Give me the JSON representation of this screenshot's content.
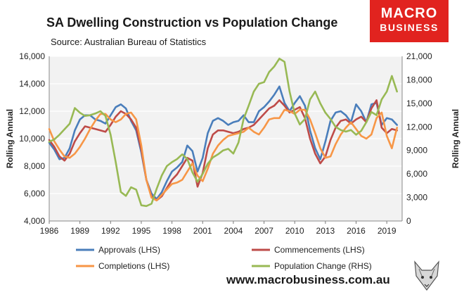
{
  "header": {
    "title": "SA Dwelling Construction vs Population Change",
    "subtitle": "Source: Australian Bureau of Statistics"
  },
  "logo": {
    "line1": "MACRO",
    "line2": "BUSINESS",
    "icon": "fox-head-icon"
  },
  "footer": {
    "url": "www.macrobusiness.com.au"
  },
  "colors": {
    "approvals": "#4a7ebb",
    "commencements": "#be4b48",
    "completions": "#f79646",
    "population": "#98b954",
    "brand": "#e1231f"
  },
  "chart_data": {
    "type": "line",
    "ylabel_left": "Rolling Annual",
    "ylabel_right": "Rolling Annual",
    "x_ticks": [
      "1986",
      "1989",
      "1992",
      "1995",
      "1998",
      "2001",
      "2004",
      "2007",
      "2010",
      "2013",
      "2016",
      "2019"
    ],
    "xlim": [
      1986,
      2020.5
    ],
    "ylim_left": [
      4000,
      16000
    ],
    "ylim_right": [
      0,
      21000
    ],
    "y_ticks_left": [
      "4,000",
      "6,000",
      "8,000",
      "10,000",
      "12,000",
      "14,000",
      "16,000"
    ],
    "y_ticks_right": [
      "0",
      "3,000",
      "6,000",
      "9,000",
      "12,000",
      "15,000",
      "18,000",
      "21,000"
    ],
    "legend": [
      "Approvals (LHS)",
      "Commencements (LHS)",
      "Completions (LHS)",
      "Population Change (RHS)"
    ],
    "series": [
      {
        "name": "Approvals (LHS)",
        "axis": "left",
        "color": "#4a7ebb",
        "points": [
          [
            1986,
            9700
          ],
          [
            1986.5,
            9200
          ],
          [
            1987,
            8500
          ],
          [
            1987.5,
            8600
          ],
          [
            1988,
            9300
          ],
          [
            1988.5,
            10600
          ],
          [
            1989,
            11400
          ],
          [
            1989.5,
            11700
          ],
          [
            1990,
            11700
          ],
          [
            1990.5,
            11400
          ],
          [
            1991,
            11300
          ],
          [
            1991.5,
            11100
          ],
          [
            1992,
            11700
          ],
          [
            1992.5,
            12300
          ],
          [
            1993,
            12500
          ],
          [
            1993.5,
            12200
          ],
          [
            1994,
            11300
          ],
          [
            1994.5,
            10600
          ],
          [
            1995,
            9000
          ],
          [
            1995.5,
            7000
          ],
          [
            1996,
            6000
          ],
          [
            1996.5,
            5600
          ],
          [
            1997,
            6100
          ],
          [
            1997.5,
            6900
          ],
          [
            1998,
            7600
          ],
          [
            1998.5,
            7900
          ],
          [
            1999,
            8300
          ],
          [
            1999.5,
            9500
          ],
          [
            2000,
            9100
          ],
          [
            2000.5,
            7600
          ],
          [
            2001,
            8600
          ],
          [
            2001.5,
            10400
          ],
          [
            2002,
            11300
          ],
          [
            2002.5,
            11500
          ],
          [
            2003,
            11300
          ],
          [
            2003.5,
            11000
          ],
          [
            2004,
            11200
          ],
          [
            2004.5,
            11300
          ],
          [
            2005,
            11700
          ],
          [
            2005.5,
            11200
          ],
          [
            2006,
            11200
          ],
          [
            2006.5,
            12000
          ],
          [
            2007,
            12300
          ],
          [
            2007.5,
            12700
          ],
          [
            2008,
            13200
          ],
          [
            2008.5,
            13800
          ],
          [
            2009,
            12600
          ],
          [
            2009.5,
            12000
          ],
          [
            2010,
            12600
          ],
          [
            2010.5,
            13100
          ],
          [
            2011,
            12400
          ],
          [
            2011.5,
            10600
          ],
          [
            2012,
            9300
          ],
          [
            2012.5,
            8500
          ],
          [
            2013,
            9800
          ],
          [
            2013.5,
            11300
          ],
          [
            2014,
            11900
          ],
          [
            2014.5,
            12000
          ],
          [
            2015,
            11700
          ],
          [
            2015.5,
            11200
          ],
          [
            2016,
            12500
          ],
          [
            2016.5,
            12000
          ],
          [
            2017,
            11200
          ],
          [
            2017.5,
            12500
          ],
          [
            2018,
            12600
          ],
          [
            2018.5,
            11000
          ],
          [
            2019,
            11500
          ],
          [
            2019.5,
            11400
          ],
          [
            2020,
            11000
          ]
        ]
      },
      {
        "name": "Commencements (LHS)",
        "axis": "left",
        "color": "#be4b48",
        "points": [
          [
            1986,
            9900
          ],
          [
            1986.5,
            9400
          ],
          [
            1987,
            8700
          ],
          [
            1987.5,
            8400
          ],
          [
            1988,
            8900
          ],
          [
            1988.5,
            9800
          ],
          [
            1989,
            10400
          ],
          [
            1989.5,
            10900
          ],
          [
            1990,
            10800
          ],
          [
            1990.5,
            10700
          ],
          [
            1991,
            10600
          ],
          [
            1991.5,
            10500
          ],
          [
            1992,
            11000
          ],
          [
            1992.5,
            11600
          ],
          [
            1993,
            12000
          ],
          [
            1993.5,
            11800
          ],
          [
            1994,
            11400
          ],
          [
            1994.5,
            10800
          ],
          [
            1995,
            9200
          ],
          [
            1995.5,
            7000
          ],
          [
            1996,
            5800
          ],
          [
            1996.5,
            5500
          ],
          [
            1997,
            5800
          ],
          [
            1997.5,
            6400
          ],
          [
            1998,
            7000
          ],
          [
            1998.5,
            7400
          ],
          [
            1999,
            8000
          ],
          [
            1999.5,
            8600
          ],
          [
            2000,
            8400
          ],
          [
            2000.5,
            6500
          ],
          [
            2001,
            7500
          ],
          [
            2001.5,
            9300
          ],
          [
            2002,
            10300
          ],
          [
            2002.5,
            10600
          ],
          [
            2003,
            10600
          ],
          [
            2003.5,
            10500
          ],
          [
            2004,
            10400
          ],
          [
            2004.5,
            10500
          ],
          [
            2005,
            10700
          ],
          [
            2005.5,
            10800
          ],
          [
            2006,
            11000
          ],
          [
            2006.5,
            11400
          ],
          [
            2007,
            11800
          ],
          [
            2007.5,
            12200
          ],
          [
            2008,
            12400
          ],
          [
            2008.5,
            12800
          ],
          [
            2009,
            12400
          ],
          [
            2009.5,
            11900
          ],
          [
            2010,
            12100
          ],
          [
            2010.5,
            12300
          ],
          [
            2011,
            11500
          ],
          [
            2011.5,
            10000
          ],
          [
            2012,
            8900
          ],
          [
            2012.5,
            8200
          ],
          [
            2013,
            8700
          ],
          [
            2013.5,
            9900
          ],
          [
            2014,
            10800
          ],
          [
            2014.5,
            11300
          ],
          [
            2015,
            11400
          ],
          [
            2015.5,
            11100
          ],
          [
            2016,
            11400
          ],
          [
            2016.5,
            11600
          ],
          [
            2017,
            11200
          ],
          [
            2017.5,
            12200
          ],
          [
            2018,
            12800
          ],
          [
            2018.5,
            10800
          ],
          [
            2019,
            10400
          ],
          [
            2019.5,
            10700
          ],
          [
            2020,
            10600
          ]
        ]
      },
      {
        "name": "Completions (LHS)",
        "axis": "left",
        "color": "#f79646",
        "points": [
          [
            1986,
            10700
          ],
          [
            1986.5,
            9800
          ],
          [
            1987,
            9200
          ],
          [
            1987.5,
            8700
          ],
          [
            1988,
            8600
          ],
          [
            1988.5,
            8900
          ],
          [
            1989,
            9400
          ],
          [
            1989.5,
            10000
          ],
          [
            1990,
            10700
          ],
          [
            1990.5,
            11300
          ],
          [
            1991,
            11800
          ],
          [
            1991.5,
            11800
          ],
          [
            1992,
            11400
          ],
          [
            1992.5,
            11200
          ],
          [
            1993,
            11400
          ],
          [
            1993.5,
            11800
          ],
          [
            1994,
            11900
          ],
          [
            1994.5,
            11400
          ],
          [
            1995,
            9500
          ],
          [
            1995.5,
            7000
          ],
          [
            1996,
            5700
          ],
          [
            1996.5,
            5500
          ],
          [
            1997,
            5900
          ],
          [
            1997.5,
            6300
          ],
          [
            1998,
            6700
          ],
          [
            1998.5,
            6800
          ],
          [
            1999,
            7000
          ],
          [
            1999.5,
            7600
          ],
          [
            2000,
            8200
          ],
          [
            2000.5,
            7300
          ],
          [
            2001,
            6900
          ],
          [
            2001.5,
            7800
          ],
          [
            2002,
            8900
          ],
          [
            2002.5,
            9500
          ],
          [
            2003,
            9900
          ],
          [
            2003.5,
            10200
          ],
          [
            2004,
            10300
          ],
          [
            2004.5,
            10400
          ],
          [
            2005,
            10500
          ],
          [
            2005.5,
            10800
          ],
          [
            2006,
            10500
          ],
          [
            2006.5,
            10300
          ],
          [
            2007,
            10800
          ],
          [
            2007.5,
            11400
          ],
          [
            2008,
            11500
          ],
          [
            2008.5,
            11500
          ],
          [
            2009,
            12100
          ],
          [
            2009.5,
            12000
          ],
          [
            2010,
            11800
          ],
          [
            2010.5,
            12100
          ],
          [
            2011,
            12100
          ],
          [
            2011.5,
            11400
          ],
          [
            2012,
            10400
          ],
          [
            2012.5,
            9300
          ],
          [
            2013,
            8600
          ],
          [
            2013.5,
            8700
          ],
          [
            2014,
            9600
          ],
          [
            2014.5,
            10300
          ],
          [
            2015,
            10800
          ],
          [
            2015.5,
            11200
          ],
          [
            2016,
            10700
          ],
          [
            2016.5,
            10200
          ],
          [
            2017,
            10000
          ],
          [
            2017.5,
            10300
          ],
          [
            2018,
            11500
          ],
          [
            2018.5,
            11900
          ],
          [
            2019,
            10200
          ],
          [
            2019.5,
            9300
          ],
          [
            2020,
            10800
          ]
        ]
      },
      {
        "name": "Population Change (RHS)",
        "axis": "right",
        "color": "#98b954",
        "points": [
          [
            1986,
            10100
          ],
          [
            1986.5,
            10400
          ],
          [
            1987,
            11000
          ],
          [
            1987.5,
            11700
          ],
          [
            1988,
            12400
          ],
          [
            1988.5,
            14400
          ],
          [
            1989,
            13800
          ],
          [
            1989.5,
            13400
          ],
          [
            1990,
            13500
          ],
          [
            1990.5,
            13700
          ],
          [
            1991,
            14000
          ],
          [
            1991.5,
            13400
          ],
          [
            1992,
            11000
          ],
          [
            1992.5,
            7500
          ],
          [
            1993,
            3700
          ],
          [
            1993.5,
            3200
          ],
          [
            1994,
            4300
          ],
          [
            1994.5,
            4000
          ],
          [
            1995,
            2000
          ],
          [
            1995.5,
            1900
          ],
          [
            1996,
            2200
          ],
          [
            1996.5,
            4100
          ],
          [
            1997,
            5800
          ],
          [
            1997.5,
            7000
          ],
          [
            1998,
            7500
          ],
          [
            1998.5,
            7900
          ],
          [
            1999,
            8500
          ],
          [
            1999.5,
            7900
          ],
          [
            2000,
            6200
          ],
          [
            2000.5,
            5000
          ],
          [
            2001,
            6000
          ],
          [
            2001.5,
            7300
          ],
          [
            2002,
            8100
          ],
          [
            2002.5,
            8500
          ],
          [
            2003,
            9000
          ],
          [
            2003.5,
            9200
          ],
          [
            2004,
            8600
          ],
          [
            2004.5,
            10000
          ],
          [
            2005,
            13000
          ],
          [
            2005.5,
            14700
          ],
          [
            2006,
            16500
          ],
          [
            2006.5,
            17500
          ],
          [
            2007,
            17700
          ],
          [
            2007.5,
            19000
          ],
          [
            2008,
            19700
          ],
          [
            2008.5,
            20700
          ],
          [
            2009,
            20300
          ],
          [
            2009.5,
            16500
          ],
          [
            2010,
            13700
          ],
          [
            2010.5,
            12300
          ],
          [
            2011,
            13000
          ],
          [
            2011.5,
            15500
          ],
          [
            2012,
            16500
          ],
          [
            2012.5,
            15000
          ],
          [
            2013,
            13800
          ],
          [
            2013.5,
            13000
          ],
          [
            2014,
            12000
          ],
          [
            2014.5,
            11600
          ],
          [
            2015,
            11400
          ],
          [
            2015.5,
            11600
          ],
          [
            2016,
            11000
          ],
          [
            2016.5,
            11500
          ],
          [
            2017,
            12600
          ],
          [
            2017.5,
            13900
          ],
          [
            2018,
            13500
          ],
          [
            2018.5,
            15500
          ],
          [
            2019,
            16500
          ],
          [
            2019.5,
            18500
          ],
          [
            2020,
            16500
          ]
        ]
      }
    ]
  }
}
